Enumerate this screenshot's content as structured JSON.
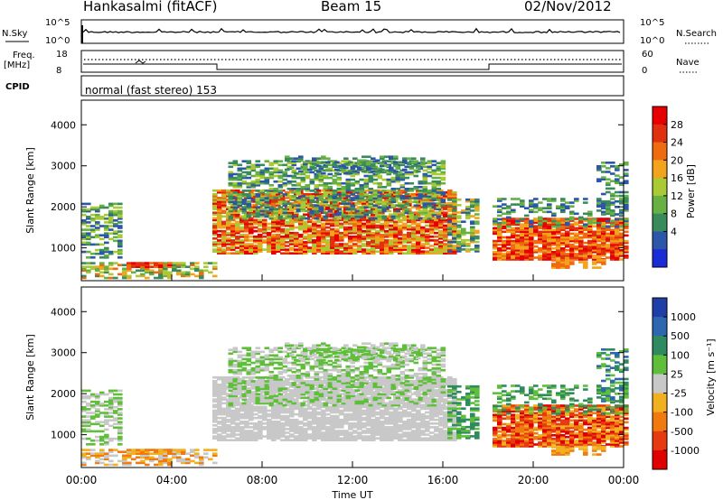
{
  "header": {
    "title": "Hankasalmi (fitACF)",
    "beam": "Beam 15",
    "date": "02/Nov/2012"
  },
  "noise_panel": {
    "left_label": "N.Sky",
    "right_label": "N.Search",
    "left_ticks": [
      "10^5",
      "10^0"
    ],
    "right_ticks": [
      "10^5",
      "10^0"
    ]
  },
  "freq_panel": {
    "left_label_top": "Freq.",
    "left_label_bottom": "[MHz]",
    "right_label": "Nave",
    "left_ticks": [
      "18",
      "8"
    ],
    "right_ticks": [
      "60",
      "0"
    ]
  },
  "cpid_panel": {
    "label": "CPID",
    "text": "normal (fast stereo) 153"
  },
  "time_axis": {
    "label": "Time UT",
    "ticks": [
      "00:00",
      "04:00",
      "08:00",
      "12:00",
      "16:00",
      "20:00",
      "00:00"
    ]
  },
  "chart_data": [
    {
      "type": "heatmap",
      "name": "power",
      "ylabel": "Slant Range [km]",
      "y_ticks": [
        1000,
        2000,
        3000,
        4000
      ],
      "ylim": [
        200,
        4600
      ],
      "xlim_hours": [
        0,
        24
      ],
      "colorbar_label": "Power [dB]",
      "colorbar_ticks": [
        "4",
        "8",
        "12",
        "16",
        "20",
        "24",
        "28"
      ],
      "colorbar_colors": [
        "#1a2bd8",
        "#2c56a8",
        "#3b8a5c",
        "#67b044",
        "#a9c935",
        "#f2a51c",
        "#f06a10",
        "#e03010",
        "#e80000"
      ]
    },
    {
      "type": "heatmap",
      "name": "velocity",
      "ylabel": "Slant Range [km]",
      "y_ticks": [
        1000,
        2000,
        3000,
        4000
      ],
      "ylim": [
        200,
        4600
      ],
      "xlim_hours": [
        0,
        24
      ],
      "colorbar_label": "Velocity [m s⁻¹]",
      "colorbar_ticks": [
        "1000",
        "500",
        "100",
        "25",
        "-25",
        "-100",
        "-500",
        "-1000"
      ],
      "colorbar_colors": [
        "#1f3fa8",
        "#2f66b0",
        "#2f8a60",
        "#5fbe3a",
        "#c8c8c8",
        "#f0b020",
        "#f07a10",
        "#e83a10",
        "#e00000"
      ]
    }
  ]
}
